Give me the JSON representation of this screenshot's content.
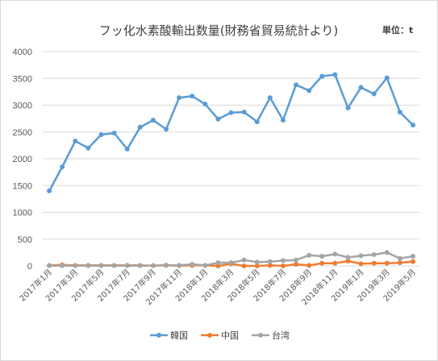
{
  "chart_data": {
    "type": "line",
    "title": "フッ化水素酸輸出数量(財務省貿易統計より)",
    "unit_label": "単位：t",
    "ylim": [
      0,
      4000
    ],
    "y_ticks": [
      0,
      500,
      1000,
      1500,
      2000,
      2500,
      3000,
      3500,
      4000
    ],
    "grid": true,
    "legend_position": "bottom",
    "x": [
      "2017年1月",
      "2017年2月",
      "2017年3月",
      "2017年4月",
      "2017年5月",
      "2017年6月",
      "2017年7月",
      "2017年8月",
      "2017年9月",
      "2017年10月",
      "2017年11月",
      "2017年12月",
      "2018年1月",
      "2018年2月",
      "2018年3月",
      "2018年4月",
      "2018年5月",
      "2018年6月",
      "2018年7月",
      "2018年8月",
      "2018年9月",
      "2018年10月",
      "2018年11月",
      "2018年12月",
      "2019年1月",
      "2019年2月",
      "2019年3月",
      "2019年4月",
      "2019年5月"
    ],
    "x_tick_labels": [
      "2017年1月",
      "2017年3月",
      "2017年5月",
      "2017年7月",
      "2017年9月",
      "2017年11月",
      "2018年1月",
      "2018年3月",
      "2018年5月",
      "2018年7月",
      "2018年9月",
      "2018年11月",
      "2019年1月",
      "2019年3月",
      "2019年5月"
    ],
    "series": [
      {
        "name": "韓国",
        "color": "#5b9bd5",
        "values": [
          1400,
          1850,
          2330,
          2200,
          2450,
          2480,
          2180,
          2590,
          2720,
          2550,
          3140,
          3170,
          3020,
          2740,
          2860,
          2870,
          2690,
          3140,
          2720,
          3380,
          3270,
          3540,
          3570,
          2950,
          3330,
          3210,
          3510,
          2870,
          2630
        ]
      },
      {
        "name": "中国",
        "color": "#ed7d31",
        "values": [
          10,
          20,
          10,
          10,
          10,
          10,
          10,
          10,
          5,
          10,
          5,
          10,
          10,
          0,
          40,
          0,
          0,
          10,
          0,
          30,
          10,
          50,
          50,
          90,
          40,
          50,
          50,
          60,
          80
        ]
      },
      {
        "name": "台湾",
        "color": "#a5a5a5",
        "values": [
          5,
          5,
          5,
          5,
          5,
          5,
          5,
          5,
          5,
          15,
          10,
          30,
          10,
          60,
          60,
          110,
          70,
          80,
          100,
          110,
          200,
          180,
          220,
          160,
          190,
          210,
          250,
          140,
          180
        ]
      }
    ]
  }
}
